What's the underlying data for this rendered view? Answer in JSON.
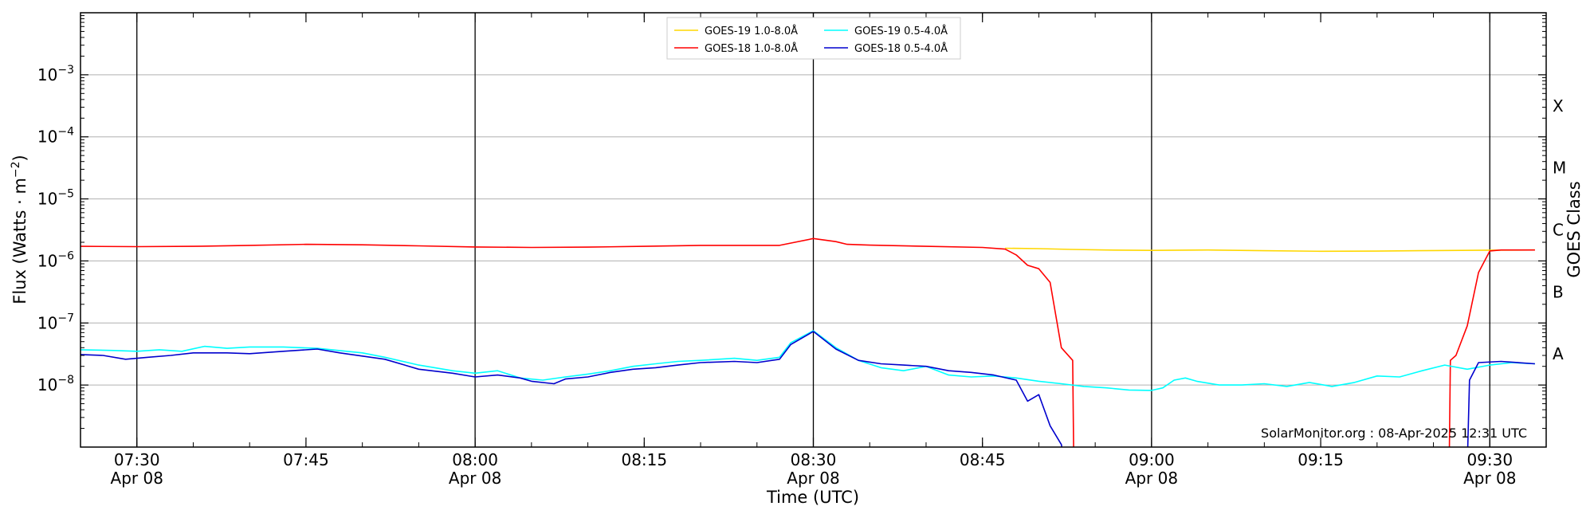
{
  "chart_data": {
    "type": "line",
    "title": "",
    "xlabel": "Time (UTC)",
    "ylabel": "Flux (Watts · m",
    "ylabel_exp": "−2",
    "ylabel_close": ")",
    "right_label": "GOES Class",
    "xlim": [
      "07:25",
      "09:35"
    ],
    "ylim": [
      1e-09,
      0.01
    ],
    "y_scale": "log",
    "grid": "horizontal",
    "legend_position": "top-center",
    "x_ticks": [
      {
        "time": "07:30",
        "label": "07:30",
        "sublabel": "Apr 08"
      },
      {
        "time": "07:45",
        "label": "07:45",
        "sublabel": ""
      },
      {
        "time": "08:00",
        "label": "08:00",
        "sublabel": "Apr 08"
      },
      {
        "time": "08:15",
        "label": "08:15",
        "sublabel": ""
      },
      {
        "time": "08:30",
        "label": "08:30",
        "sublabel": "Apr 08"
      },
      {
        "time": "08:45",
        "label": "08:45",
        "sublabel": ""
      },
      {
        "time": "09:00",
        "label": "09:00",
        "sublabel": "Apr 08"
      },
      {
        "time": "09:15",
        "label": "09:15",
        "sublabel": ""
      },
      {
        "time": "09:30",
        "label": "09:30",
        "sublabel": "Apr 08"
      }
    ],
    "vertical_lines": [
      "07:30",
      "08:00",
      "08:30",
      "09:00",
      "09:30"
    ],
    "y_ticks": [
      {
        "value": 1e-08,
        "base": "10",
        "exp": "−8"
      },
      {
        "value": 1e-07,
        "base": "10",
        "exp": "−7"
      },
      {
        "value": 1e-06,
        "base": "10",
        "exp": "−6"
      },
      {
        "value": 1e-05,
        "base": "10",
        "exp": "−5"
      },
      {
        "value": 0.0001,
        "base": "10",
        "exp": "−4"
      },
      {
        "value": 0.001,
        "base": "10",
        "exp": "−3"
      }
    ],
    "classes": [
      {
        "label": "A",
        "value": 3.16e-08
      },
      {
        "label": "B",
        "value": 3.16e-07
      },
      {
        "label": "C",
        "value": 3.16e-06
      },
      {
        "label": "M",
        "value": 3.16e-05
      },
      {
        "label": "X",
        "value": 0.000316
      }
    ],
    "annotation": "SolarMonitor.org : 08-Apr-2025 12:31 UTC",
    "series": [
      {
        "name": "GOES-19 1.0-8.0Å",
        "color": "#ffd700",
        "points": [
          [
            "08:47",
            1.6e-06
          ],
          [
            "08:50",
            1.58e-06
          ],
          [
            "08:53",
            1.53e-06
          ],
          [
            "08:56",
            1.5e-06
          ],
          [
            "09:00",
            1.48e-06
          ],
          [
            "09:05",
            1.5e-06
          ],
          [
            "09:10",
            1.46e-06
          ],
          [
            "09:15",
            1.43e-06
          ],
          [
            "09:20",
            1.44e-06
          ],
          [
            "09:25",
            1.47e-06
          ],
          [
            "09:30",
            1.49e-06
          ],
          [
            "09:34",
            1.5e-06
          ]
        ]
      },
      {
        "name": "GOES-18 1.0-8.0Å",
        "color": "#ff0000",
        "points": [
          [
            "07:25",
            1.72e-06
          ],
          [
            "07:30",
            1.7e-06
          ],
          [
            "07:35",
            1.72e-06
          ],
          [
            "07:40",
            1.78e-06
          ],
          [
            "07:45",
            1.85e-06
          ],
          [
            "07:50",
            1.82e-06
          ],
          [
            "07:55",
            1.75e-06
          ],
          [
            "08:00",
            1.68e-06
          ],
          [
            "08:05",
            1.65e-06
          ],
          [
            "08:10",
            1.67e-06
          ],
          [
            "08:15",
            1.72e-06
          ],
          [
            "08:20",
            1.78e-06
          ],
          [
            "08:25",
            1.78e-06
          ],
          [
            "08:27",
            1.78e-06
          ],
          [
            "08:30",
            2.3e-06
          ],
          [
            "08:32",
            2.05e-06
          ],
          [
            "08:33",
            1.85e-06
          ],
          [
            "08:35",
            1.8e-06
          ],
          [
            "08:40",
            1.72e-06
          ],
          [
            "08:45",
            1.65e-06
          ],
          [
            "08:47",
            1.55e-06
          ],
          [
            "08:48",
            1.25e-06
          ],
          [
            "08:49",
            8.5e-07
          ],
          [
            "08:50",
            7.5e-07
          ],
          [
            "08:51",
            4.5e-07
          ],
          [
            "08:52",
            4e-08
          ],
          [
            "08:53",
            2.5e-08
          ],
          [
            "08:53.1",
            5e-10
          ],
          [
            "09:26.4",
            5e-10
          ],
          [
            "09:26.5",
            2.5e-08
          ],
          [
            "09:27",
            3e-08
          ],
          [
            "09:28",
            9e-08
          ],
          [
            "09:29",
            6.5e-07
          ],
          [
            "09:30",
            1.45e-06
          ],
          [
            "09:31",
            1.5e-06
          ],
          [
            "09:34",
            1.5e-06
          ]
        ]
      },
      {
        "name": "GOES-19 0.5-4.0Å",
        "color": "#00ffff",
        "points": [
          [
            "07:25",
            3.7e-08
          ],
          [
            "07:28",
            3.6e-08
          ],
          [
            "07:30",
            3.5e-08
          ],
          [
            "07:32",
            3.7e-08
          ],
          [
            "07:34",
            3.5e-08
          ],
          [
            "07:36",
            4.2e-08
          ],
          [
            "07:38",
            3.9e-08
          ],
          [
            "07:40",
            4.1e-08
          ],
          [
            "07:43",
            4.1e-08
          ],
          [
            "07:46",
            3.9e-08
          ],
          [
            "07:50",
            3.3e-08
          ],
          [
            "07:52",
            2.8e-08
          ],
          [
            "07:55",
            2.1e-08
          ],
          [
            "07:58",
            1.7e-08
          ],
          [
            "08:00",
            1.55e-08
          ],
          [
            "08:02",
            1.7e-08
          ],
          [
            "08:04",
            1.3e-08
          ],
          [
            "08:06",
            1.2e-08
          ],
          [
            "08:08",
            1.35e-08
          ],
          [
            "08:10",
            1.5e-08
          ],
          [
            "08:12",
            1.7e-08
          ],
          [
            "08:14",
            2e-08
          ],
          [
            "08:16",
            2.2e-08
          ],
          [
            "08:18",
            2.4e-08
          ],
          [
            "08:20",
            2.5e-08
          ],
          [
            "08:23",
            2.7e-08
          ],
          [
            "08:25",
            2.5e-08
          ],
          [
            "08:27",
            2.8e-08
          ],
          [
            "08:28",
            4.8e-08
          ],
          [
            "08:30",
            7.5e-08
          ],
          [
            "08:32",
            4e-08
          ],
          [
            "08:34",
            2.5e-08
          ],
          [
            "08:36",
            1.9e-08
          ],
          [
            "08:38",
            1.7e-08
          ],
          [
            "08:40",
            2e-08
          ],
          [
            "08:42",
            1.45e-08
          ],
          [
            "08:44",
            1.35e-08
          ],
          [
            "08:46",
            1.4e-08
          ],
          [
            "08:48",
            1.3e-08
          ],
          [
            "08:50",
            1.15e-08
          ],
          [
            "08:52",
            1.05e-08
          ],
          [
            "08:54",
            9.5e-09
          ],
          [
            "08:56",
            9e-09
          ],
          [
            "08:58",
            8.3e-09
          ],
          [
            "09:00",
            8.2e-09
          ],
          [
            "09:01",
            9e-09
          ],
          [
            "09:02",
            1.2e-08
          ],
          [
            "09:03",
            1.3e-08
          ],
          [
            "09:04",
            1.15e-08
          ],
          [
            "09:06",
            1e-08
          ],
          [
            "09:08",
            1e-08
          ],
          [
            "09:10",
            1.05e-08
          ],
          [
            "09:12",
            9.5e-09
          ],
          [
            "09:14",
            1.1e-08
          ],
          [
            "09:16",
            9.5e-09
          ],
          [
            "09:18",
            1.1e-08
          ],
          [
            "09:20",
            1.4e-08
          ],
          [
            "09:22",
            1.35e-08
          ],
          [
            "09:24",
            1.7e-08
          ],
          [
            "09:26",
            2.1e-08
          ],
          [
            "09:28",
            1.8e-08
          ],
          [
            "09:30",
            2.1e-08
          ],
          [
            "09:32",
            2.3e-08
          ],
          [
            "09:34",
            2.2e-08
          ]
        ]
      },
      {
        "name": "GOES-18 0.5-4.0Å",
        "color": "#0000cd",
        "points": [
          [
            "07:25",
            3.1e-08
          ],
          [
            "07:27",
            3e-08
          ],
          [
            "07:29",
            2.6e-08
          ],
          [
            "07:31",
            2.8e-08
          ],
          [
            "07:33",
            3e-08
          ],
          [
            "07:35",
            3.3e-08
          ],
          [
            "07:38",
            3.3e-08
          ],
          [
            "07:40",
            3.2e-08
          ],
          [
            "07:43",
            3.5e-08
          ],
          [
            "07:46",
            3.8e-08
          ],
          [
            "07:48",
            3.3e-08
          ],
          [
            "07:52",
            2.6e-08
          ],
          [
            "07:55",
            1.8e-08
          ],
          [
            "07:58",
            1.55e-08
          ],
          [
            "08:00",
            1.35e-08
          ],
          [
            "08:02",
            1.45e-08
          ],
          [
            "08:04",
            1.3e-08
          ],
          [
            "08:05",
            1.15e-08
          ],
          [
            "08:07",
            1.05e-08
          ],
          [
            "08:08",
            1.25e-08
          ],
          [
            "08:10",
            1.35e-08
          ],
          [
            "08:12",
            1.6e-08
          ],
          [
            "08:14",
            1.8e-08
          ],
          [
            "08:16",
            1.9e-08
          ],
          [
            "08:18",
            2.1e-08
          ],
          [
            "08:20",
            2.3e-08
          ],
          [
            "08:23",
            2.4e-08
          ],
          [
            "08:25",
            2.3e-08
          ],
          [
            "08:27",
            2.6e-08
          ],
          [
            "08:28",
            4.5e-08
          ],
          [
            "08:30",
            7.3e-08
          ],
          [
            "08:32",
            3.8e-08
          ],
          [
            "08:34",
            2.5e-08
          ],
          [
            "08:36",
            2.2e-08
          ],
          [
            "08:38",
            2.1e-08
          ],
          [
            "08:40",
            2e-08
          ],
          [
            "08:42",
            1.7e-08
          ],
          [
            "08:44",
            1.6e-08
          ],
          [
            "08:46",
            1.45e-08
          ],
          [
            "08:48",
            1.2e-08
          ],
          [
            "08:49",
            5.5e-09
          ],
          [
            "08:50",
            7e-09
          ],
          [
            "08:51",
            2.2e-09
          ],
          [
            "08:52",
            1.1e-09
          ],
          [
            "08:52.3",
            5e-10
          ],
          [
            "09:28",
            5e-10
          ],
          [
            "09:28.2",
            1.2e-08
          ],
          [
            "09:29",
            2.3e-08
          ],
          [
            "09:31",
            2.4e-08
          ],
          [
            "09:34",
            2.2e-08
          ]
        ]
      }
    ]
  }
}
